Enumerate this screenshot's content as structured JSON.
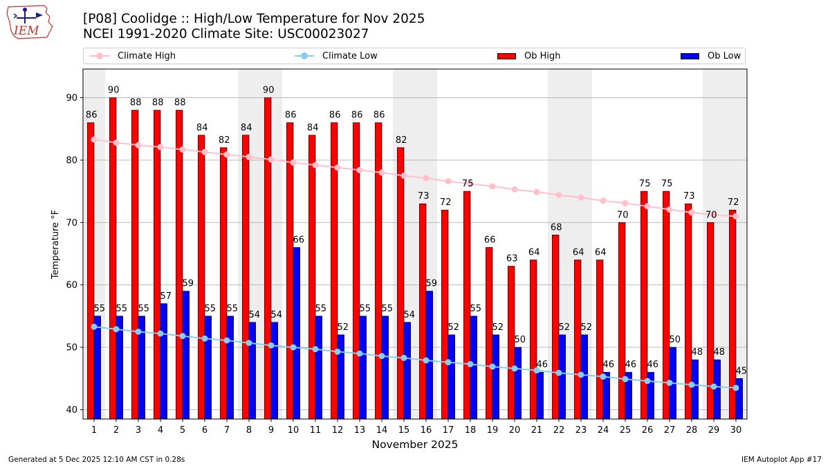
{
  "header": {
    "title_line1": "[P08] Coolidge :: High/Low Temperature for Nov 2025",
    "title_line2": "NCEI 1991-2020 Climate Site: USC00023027",
    "logo_text": "IEM"
  },
  "footer": {
    "generated": "Generated at 5 Dec 2025 12:10 AM CST in 0.28s",
    "app": "IEM Autoplot App #17"
  },
  "colors": {
    "ob_high": "#ff0000",
    "ob_low": "#0000ff",
    "climate_high": "#ffc0cb",
    "climate_low": "#87ceeb",
    "weekend_shade": "#eeeeee",
    "grid": "#b0b0b0"
  },
  "legend": {
    "items": [
      {
        "label": "Climate High",
        "kind": "line",
        "color": "#ffc0cb"
      },
      {
        "label": "Climate Low",
        "kind": "line",
        "color": "#87ceeb"
      },
      {
        "label": "Ob High",
        "kind": "box",
        "color": "#ff0000"
      },
      {
        "label": "Ob Low",
        "kind": "box",
        "color": "#0000ff"
      }
    ]
  },
  "chart_data": {
    "type": "bar",
    "xlabel": "November 2025",
    "ylabel": "Temperature °F",
    "ylim": [
      38.5,
      94.6
    ],
    "yticks": [
      40,
      50,
      60,
      70,
      80,
      90
    ],
    "grid": true,
    "legend_position": "top",
    "categories": [
      "1",
      "2",
      "3",
      "4",
      "5",
      "6",
      "7",
      "8",
      "9",
      "10",
      "11",
      "12",
      "13",
      "14",
      "15",
      "16",
      "17",
      "18",
      "19",
      "20",
      "21",
      "22",
      "23",
      "24",
      "25",
      "26",
      "27",
      "28",
      "29",
      "30"
    ],
    "shaded_days": [
      1,
      8,
      9,
      15,
      16,
      22,
      23,
      29,
      30
    ],
    "series": [
      {
        "name": "Ob High",
        "kind": "bar",
        "values": [
          86,
          90,
          88,
          88,
          88,
          84,
          82,
          84,
          90,
          86,
          84,
          86,
          86,
          86,
          82,
          73,
          72,
          75,
          66,
          63,
          64,
          68,
          64,
          64,
          70,
          75,
          75,
          73,
          70,
          72
        ]
      },
      {
        "name": "Ob Low",
        "kind": "bar",
        "values": [
          55,
          55,
          55,
          57,
          59,
          55,
          55,
          54,
          54,
          66,
          55,
          52,
          55,
          55,
          54,
          59,
          52,
          55,
          52,
          50,
          46,
          52,
          52,
          46,
          46,
          46,
          50,
          48,
          48,
          45
        ]
      },
      {
        "name": "Climate High",
        "kind": "line",
        "values": [
          83.3,
          82.8,
          82.4,
          82.1,
          81.7,
          81.3,
          80.9,
          80.5,
          80.1,
          79.6,
          79.2,
          78.8,
          78.4,
          78.0,
          77.5,
          77.1,
          76.6,
          76.2,
          75.8,
          75.3,
          74.9,
          74.4,
          74.0,
          73.5,
          73.1,
          72.6,
          72.1,
          71.6,
          71.2,
          71.0
        ]
      },
      {
        "name": "Climate Low",
        "kind": "line",
        "values": [
          53.3,
          52.9,
          52.5,
          52.2,
          51.8,
          51.4,
          51.1,
          50.7,
          50.3,
          50.0,
          49.7,
          49.3,
          49.0,
          48.6,
          48.3,
          47.9,
          47.6,
          47.3,
          46.9,
          46.6,
          46.3,
          45.9,
          45.6,
          45.3,
          44.9,
          44.6,
          44.3,
          44.0,
          43.7,
          43.5
        ]
      }
    ]
  }
}
